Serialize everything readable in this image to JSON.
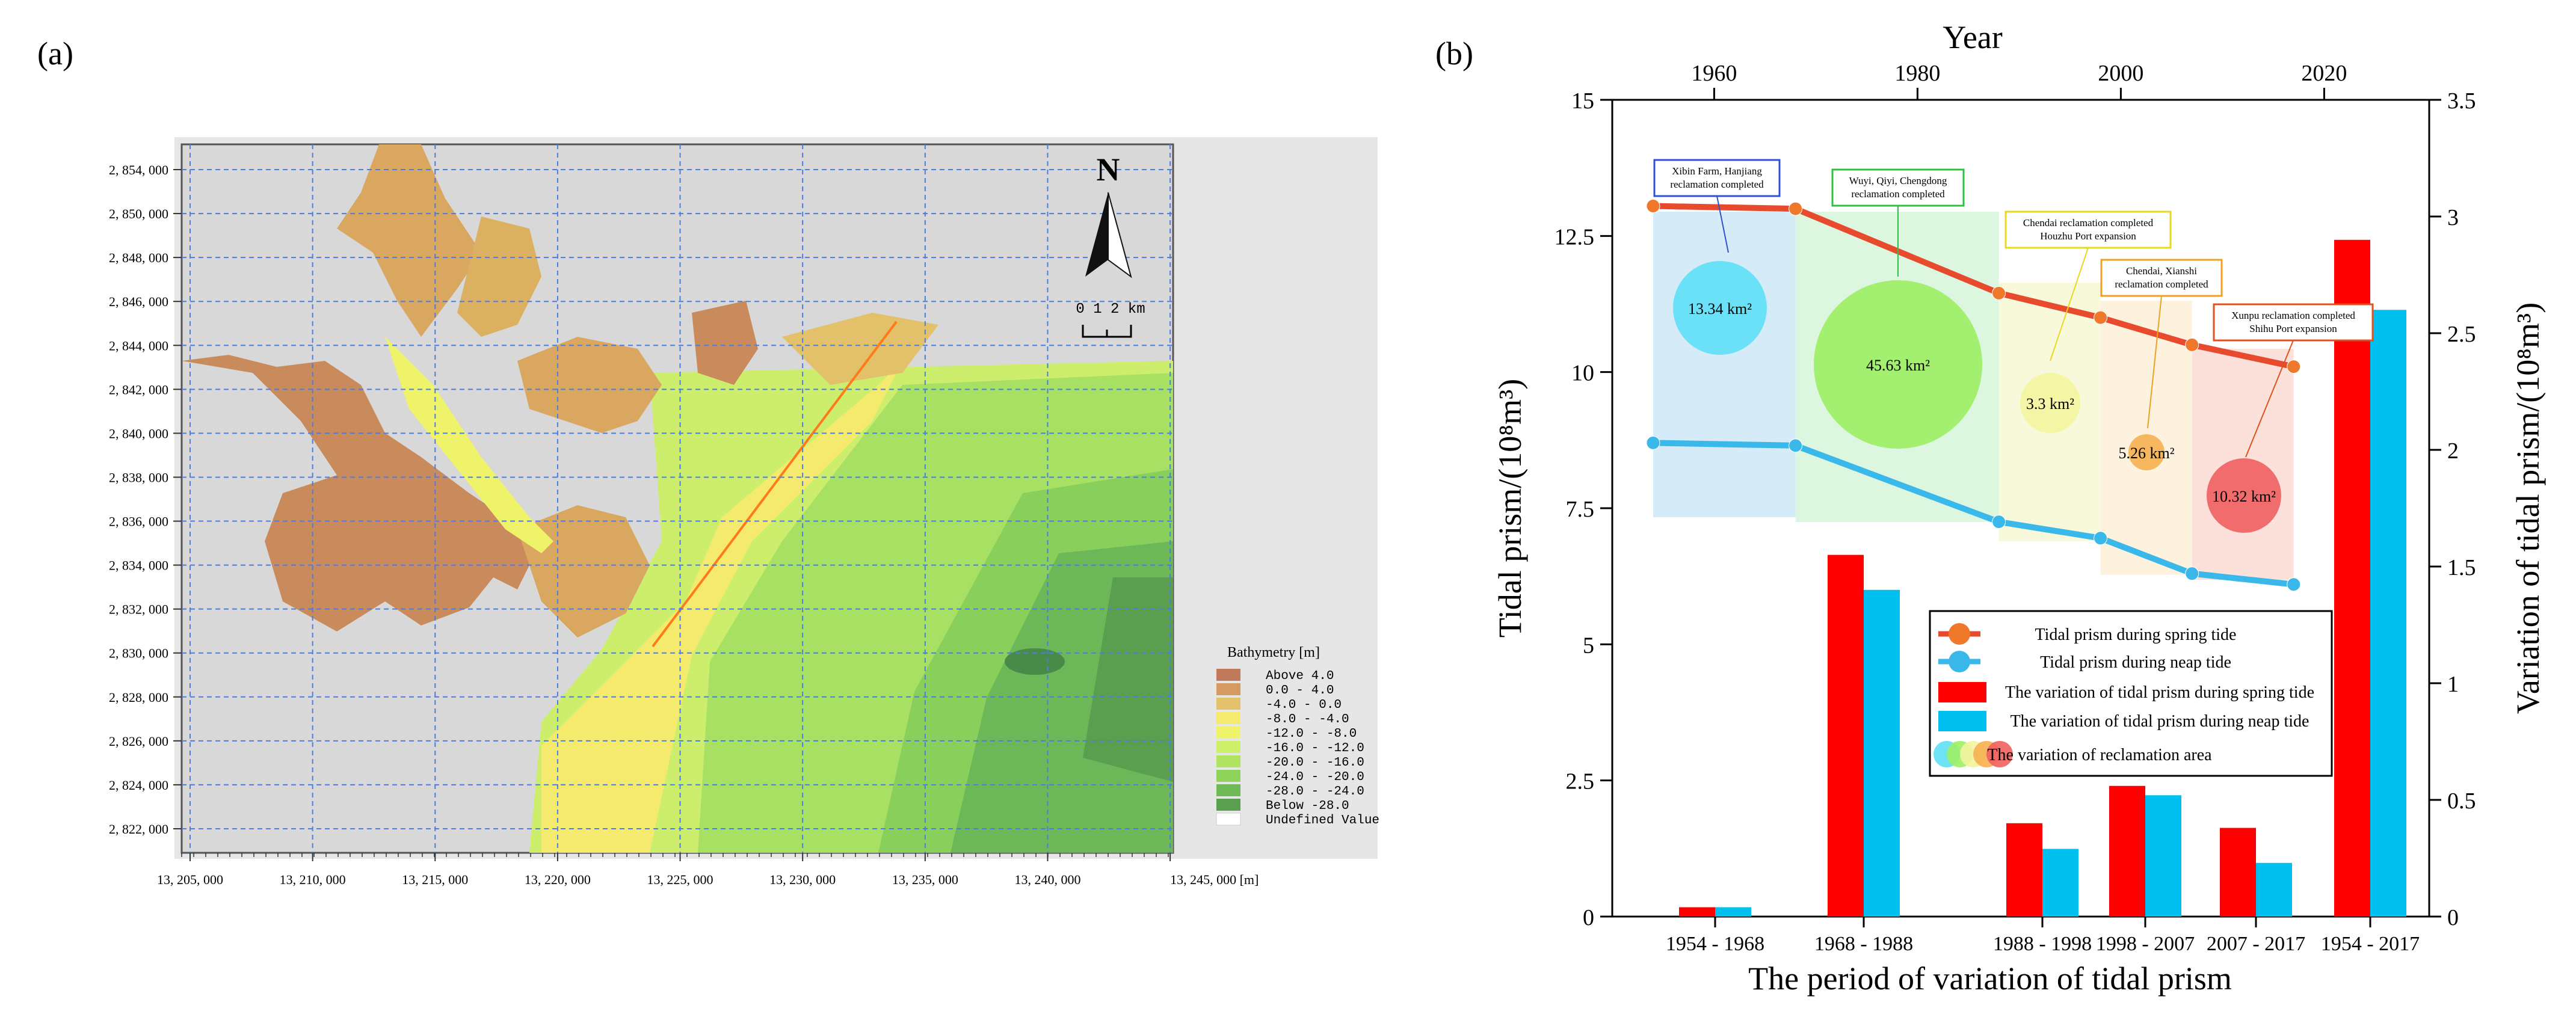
{
  "panels": {
    "a": "(a)",
    "b": "(b)"
  },
  "map": {
    "north": "N",
    "scale_text": "0  1  2  km",
    "x_ticks": [
      "13, 205, 000",
      "13, 210, 000",
      "13, 215, 000",
      "13, 220, 000",
      "13, 225, 000",
      "13, 230, 000",
      "13, 235, 000",
      "13, 240, 000",
      "13, 245, 000 [m]"
    ],
    "y_ticks": [
      "2, 854, 000",
      "2, 850, 000",
      "2, 848, 000",
      "2, 846, 000",
      "2, 844, 000",
      "2, 842, 000",
      "2, 840, 000",
      "2, 838, 000",
      "2, 836, 000",
      "2, 834, 000",
      "2, 832, 000",
      "2, 830, 000",
      "2, 828, 000",
      "2, 826, 000",
      "2, 824, 000",
      "2, 822, 000"
    ],
    "legend": {
      "title": "Bathymetry [m]",
      "entries": [
        {
          "label": "Above    4.0",
          "color": "#c17a5b"
        },
        {
          "label": "0.0  -   4.0",
          "color": "#d49a62"
        },
        {
          "label": "-4.0  -   0.0",
          "color": "#e3c06a"
        },
        {
          "label": "-8.0  -  -4.0",
          "color": "#f3ea6e"
        },
        {
          "label": "-12.0  -  -8.0",
          "color": "#eef36a"
        },
        {
          "label": "-16.0  -  -12.0",
          "color": "#cff06a"
        },
        {
          "label": "-20.0  -  -16.0",
          "color": "#b0e460"
        },
        {
          "label": "-24.0  -  -20.0",
          "color": "#8fd35a"
        },
        {
          "label": "-28.0  -  -24.0",
          "color": "#6fba56"
        },
        {
          "label": "Below   -28.0",
          "color": "#5a9e50"
        },
        {
          "label": "Undefined Value",
          "color": "#ffffff"
        }
      ]
    }
  },
  "chart_data": {
    "type": "bar",
    "title": "",
    "xlabel": "The period of variation of tidal prism",
    "ylabel": "Tidal prism/(10⁸m³)",
    "ylabel_right": "Variation of tidal prism/(10⁸m³)",
    "top_axis_label": "Year",
    "top_ticks": [
      "1960",
      "1980",
      "2000",
      "2020"
    ],
    "top_tick_years": [
      1960,
      1980,
      2000,
      2020
    ],
    "ylim": [
      0,
      15
    ],
    "y_ticks": [
      "0",
      "2.5",
      "5",
      "7.5",
      "10",
      "12.5",
      "15"
    ],
    "ylim_right": [
      0,
      3.5
    ],
    "y_ticks_right": [
      "0",
      "0.5",
      "1",
      "1.5",
      "2",
      "2.5",
      "3",
      "3.5"
    ],
    "categories": [
      "1954 - 1968",
      "1968 - 1988",
      "1988 - 1998",
      "1998 - 2007",
      "2007 - 2017",
      "1954 - 2017"
    ],
    "series": [
      {
        "name": "The variation of tidal prism during spring tide",
        "color": "#ff0000",
        "values": [
          0.04,
          1.55,
          0.4,
          0.56,
          0.38,
          2.9
        ]
      },
      {
        "name": "The variation of tidal prism during neap tide",
        "color": "#00c0f0",
        "values": [
          0.04,
          1.4,
          0.29,
          0.52,
          0.23,
          2.6
        ]
      }
    ],
    "lines": [
      {
        "name": "Tidal prism during spring tide",
        "color": "#e84a2e",
        "marker": "#f0782a",
        "years": [
          1954,
          1968,
          1988,
          1998,
          2007,
          2017
        ],
        "values": [
          13.05,
          13.0,
          11.45,
          11.0,
          10.5,
          10.1
        ]
      },
      {
        "name": "Tidal prism during neap tide",
        "color": "#3ab8ea",
        "marker": "#3ab8ea",
        "years": [
          1954,
          1968,
          1988,
          1998,
          2007,
          2017
        ],
        "values": [
          8.7,
          8.65,
          7.25,
          6.95,
          6.3,
          6.1
        ]
      }
    ],
    "reclamation": [
      {
        "label": "13.34 km²",
        "note": "Xibin Farm, Hanjiang\nreclamation completed",
        "from": 1954,
        "to": 1968,
        "fill": "#cfe8f7",
        "circle": "#5ee0f5",
        "border": "#3050d0"
      },
      {
        "label": "45.63 km²",
        "note": "Wuyi, Qiyi, Chengdong\nreclamation completed",
        "from": 1968,
        "to": 1988,
        "fill": "#d6f5d9",
        "circle": "#9cf065",
        "border": "#30c040"
      },
      {
        "label": "3.3 km²",
        "note": "Chendai reclamation completed\nHouzhu Port expansion",
        "from": 1988,
        "to": 1998,
        "fill": "#f7f8d3",
        "circle": "#f4f4a0",
        "border": "#e8d820"
      },
      {
        "label": "5.26 km²",
        "note": "Chendai, Xianshi\nreclamation completed",
        "from": 1998,
        "to": 2007,
        "fill": "#fdf0d8",
        "circle": "#f6b050",
        "border": "#f0a020"
      },
      {
        "label": "10.32 km²",
        "note": "Xunpu reclamation completed\nShihu Port expansion",
        "from": 2007,
        "to": 2017,
        "fill": "#fbdcd4",
        "circle": "#f06060",
        "border": "#e05020"
      }
    ],
    "legend_area": "The variation of reclamation area"
  }
}
